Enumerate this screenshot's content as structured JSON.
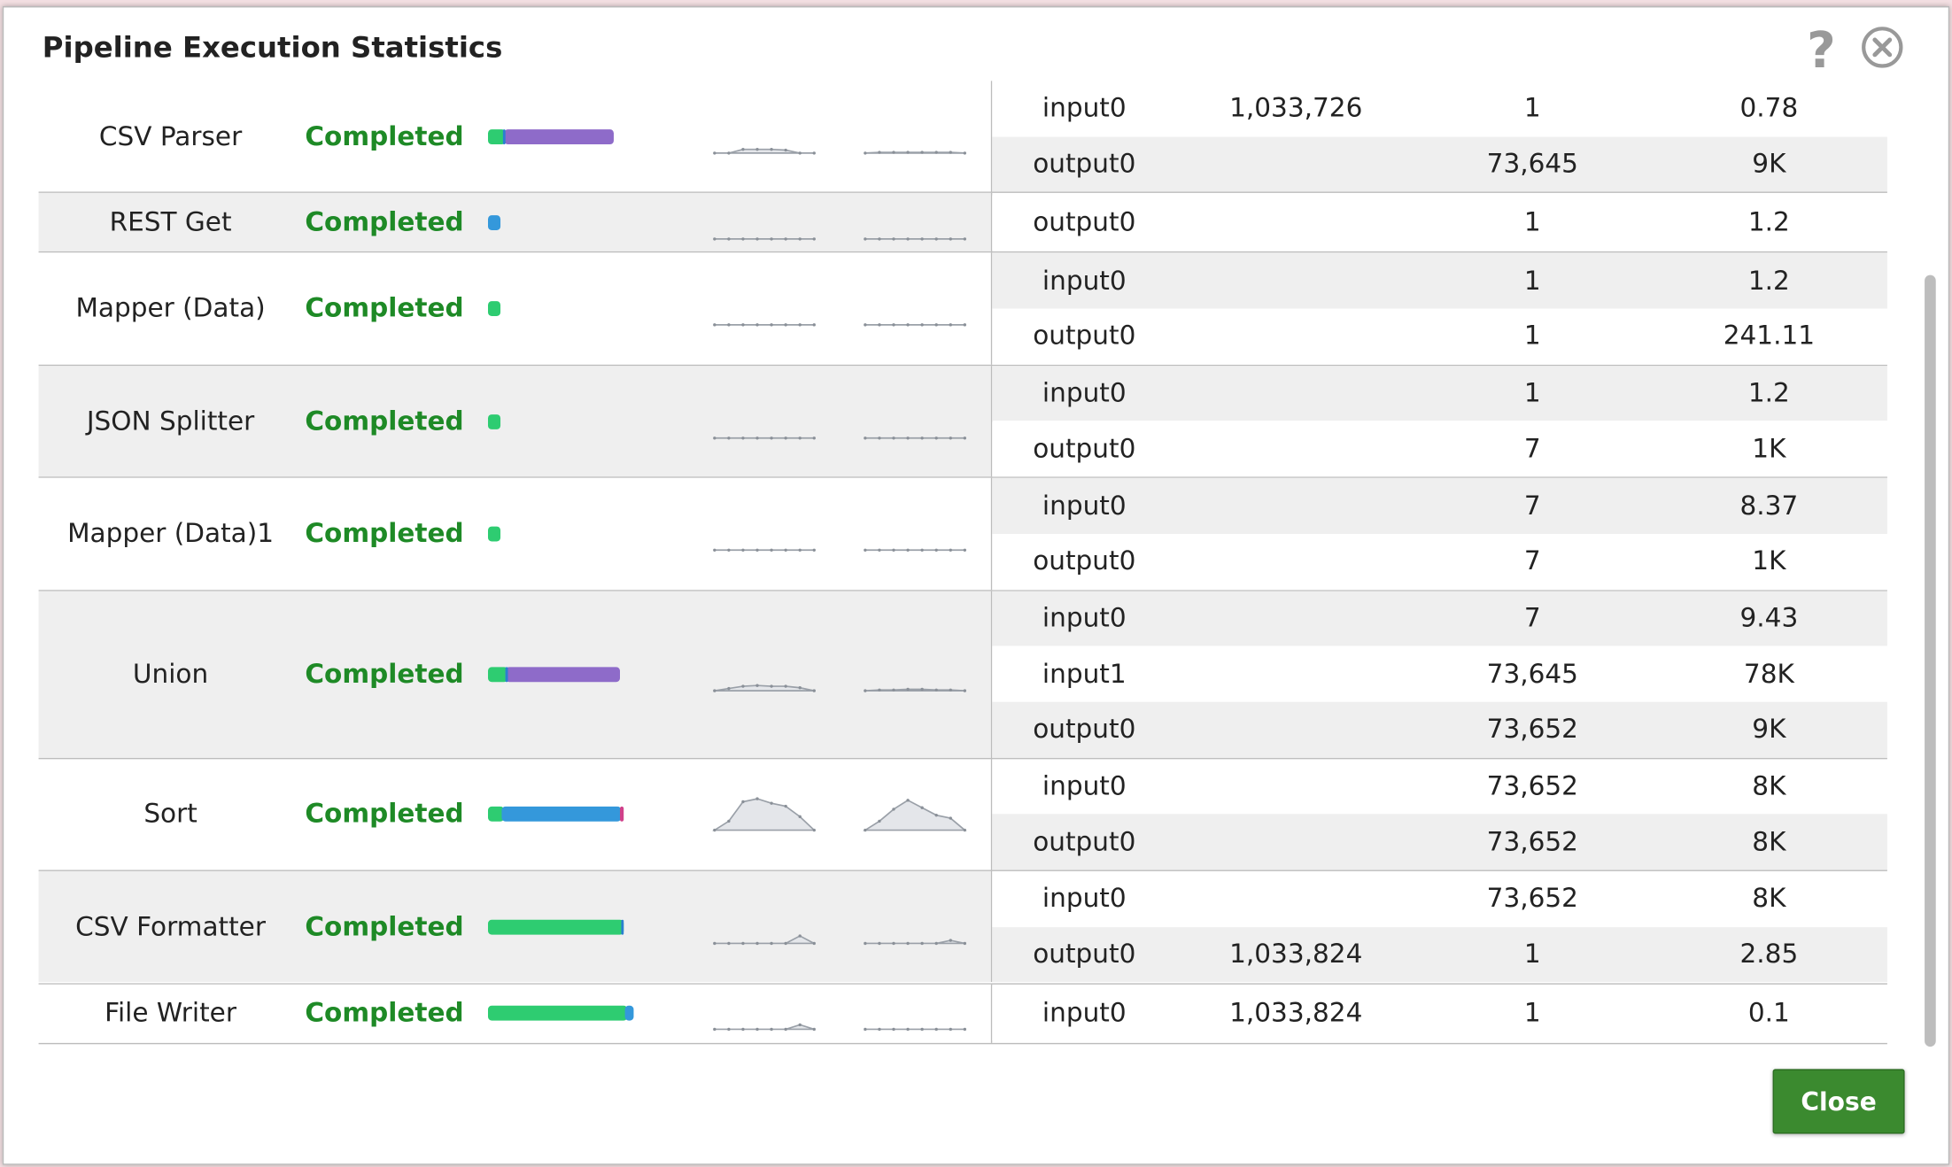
{
  "title": "Pipeline Execution Statistics",
  "close_button": "Close",
  "rows": [
    {
      "name": "CSV Parser",
      "status": "Completed",
      "views": [
        {
          "view": "input0",
          "size": "1,033,726",
          "documents": "1",
          "rate": "0.78"
        },
        {
          "view": "output0",
          "documents": "73,645",
          "rate": "9K"
        }
      ]
    },
    {
      "name": "REST Get",
      "status": "Completed",
      "views": [
        {
          "view": "output0",
          "documents": "1",
          "rate": "1.2"
        }
      ]
    },
    {
      "name": "Mapper (Data)",
      "status": "Completed",
      "views": [
        {
          "view": "input0",
          "documents": "1",
          "rate": "1.2"
        },
        {
          "view": "output0",
          "documents": "1",
          "rate": "241.11"
        }
      ]
    },
    {
      "name": "JSON Splitter",
      "status": "Completed",
      "views": [
        {
          "view": "input0",
          "documents": "1",
          "rate": "1.2"
        },
        {
          "view": "output0",
          "documents": "7",
          "rate": "1K"
        }
      ]
    },
    {
      "name": "Mapper (Data)1",
      "status": "Completed",
      "views": [
        {
          "view": "input0",
          "documents": "7",
          "rate": "8.37"
        },
        {
          "view": "output0",
          "documents": "7",
          "rate": "1K"
        }
      ]
    },
    {
      "name": "Union",
      "status": "Completed",
      "views": [
        {
          "view": "input0",
          "documents": "7",
          "rate": "9.43"
        },
        {
          "view": "input1",
          "documents": "73,645",
          "rate": "78K"
        },
        {
          "view": "output0",
          "documents": "73,652",
          "rate": "9K"
        }
      ]
    },
    {
      "name": "Sort",
      "status": "Completed",
      "views": [
        {
          "view": "input0",
          "documents": "73,652",
          "rate": "8K"
        },
        {
          "view": "output0",
          "documents": "73,652",
          "rate": "8K"
        }
      ]
    },
    {
      "name": "CSV Formatter",
      "status": "Completed",
      "views": [
        {
          "view": "input0",
          "documents": "73,652",
          "rate": "8K"
        },
        {
          "view": "output0",
          "size": "1,033,824",
          "documents": "1",
          "rate": "2.85"
        }
      ]
    },
    {
      "name": "File Writer",
      "status": "Completed",
      "views": [
        {
          "view": "input0",
          "size": "1,033,824",
          "documents": "1",
          "rate": "0.1"
        }
      ]
    }
  ]
}
